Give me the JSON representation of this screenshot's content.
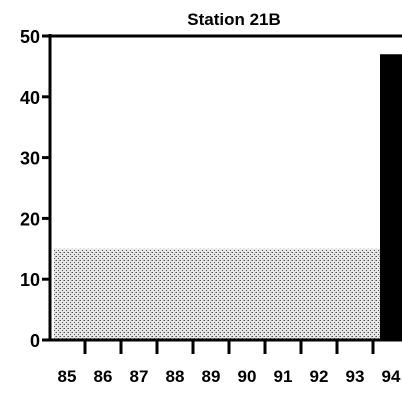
{
  "chart_data": {
    "type": "bar",
    "title": "Station 21B",
    "xlabel": "",
    "ylabel": "",
    "ylim": [
      0,
      50
    ],
    "yticks": [
      0,
      10,
      20,
      30,
      40,
      50
    ],
    "categories": [
      "85",
      "86",
      "87",
      "88",
      "89",
      "90",
      "91",
      "92",
      "93",
      "94"
    ],
    "series": [
      {
        "values": [
          15,
          15,
          15,
          15,
          15,
          15,
          15,
          15,
          15,
          47
        ]
      }
    ],
    "grid": false,
    "legend": "none",
    "colors": {
      "band_fill": "#c8c8c8",
      "highlight_bar": "#000000",
      "axis": "#000000"
    }
  }
}
